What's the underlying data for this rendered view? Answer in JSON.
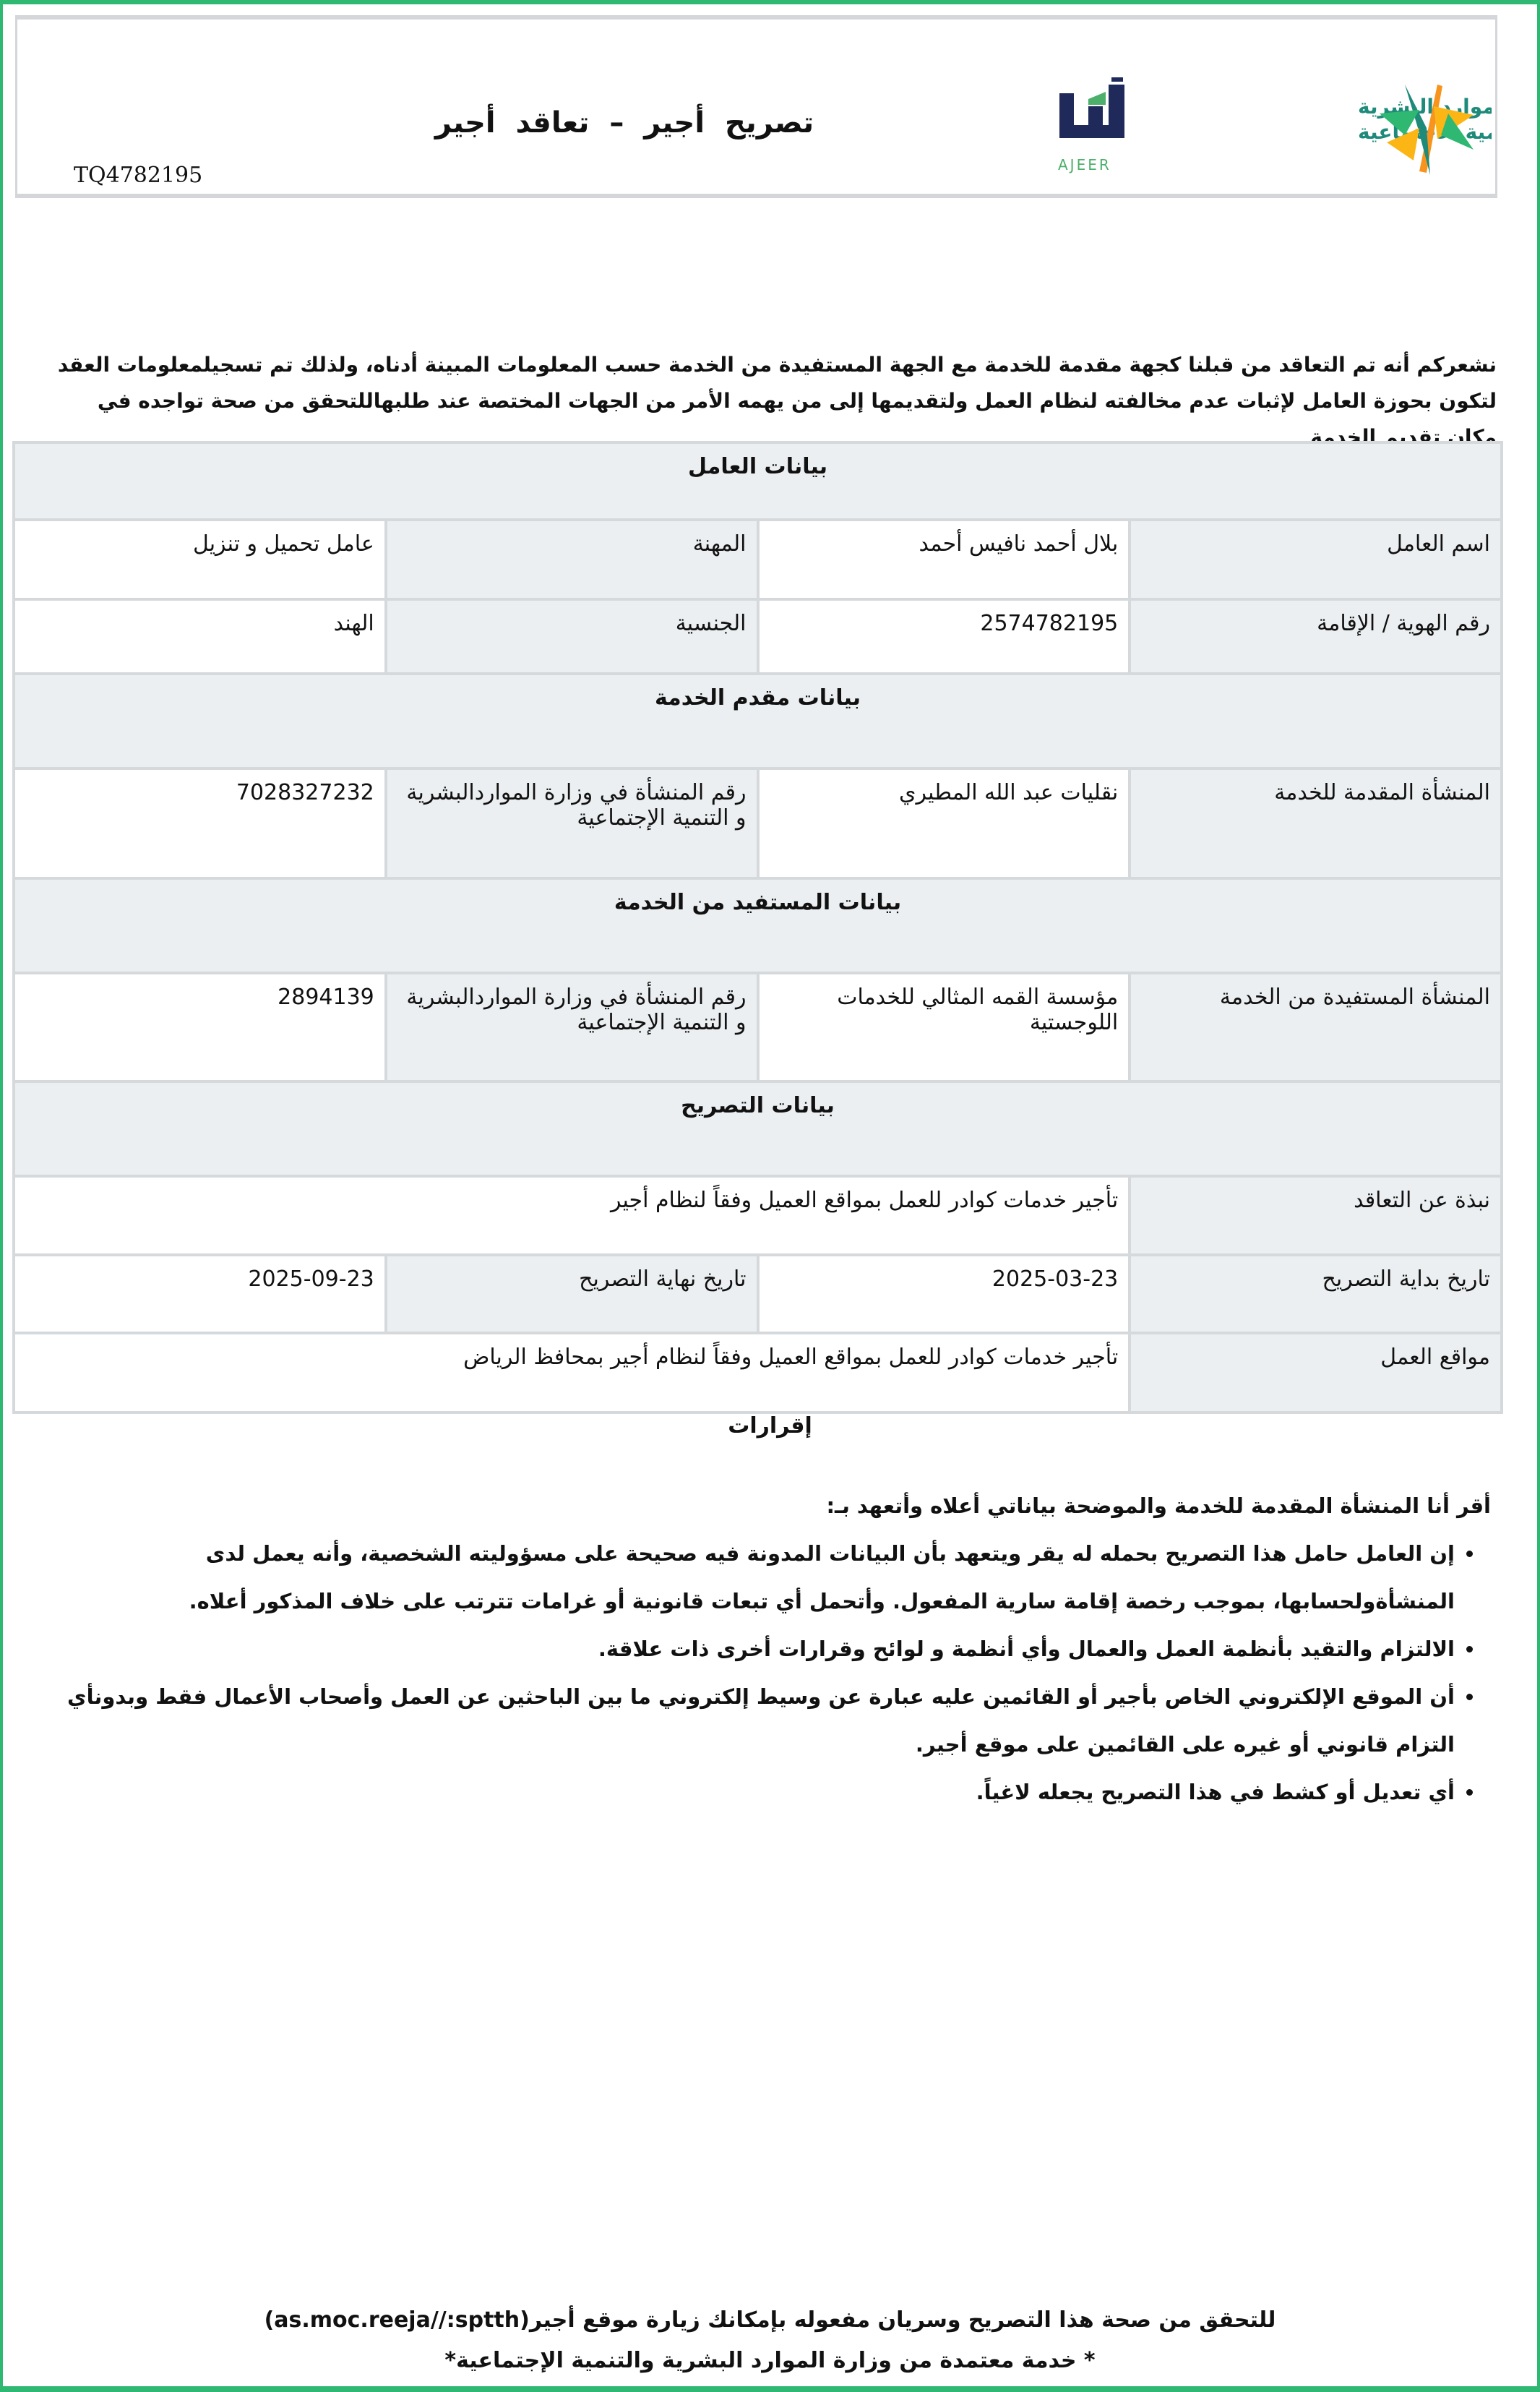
{
  "header": {
    "title": "تصريح أجير – تعاقد أجير",
    "reference": "TQ4782195",
    "ajeer_logo_text": "أجير",
    "ajeer_logo_latin": "AJEER",
    "ministry_logo_line1": "الموارد البشرية",
    "ministry_logo_line2": "والتنمية الاجتماعية",
    "colors": {
      "frame_green": "#2eb872",
      "ajeer_navy": "#1f2a5a",
      "ministry_teal": "#1e8a7a",
      "logo_orange": "#f7941d",
      "logo_yellow": "#fbb616",
      "cell_gray": "#eceff1"
    }
  },
  "intro": "نشعركم أنه تم التعاقد من قبلنا كجهة مقدمة للخدمة مع الجهة المستفيدة من الخدمة حسب المعلومات المبينة أدناه، ولذلك تم تسجيلمعلومات العقد لتكون بحوزة العامل لإثبات عدم مخالفته لنظام العمل ولتقديمها إلى من يهمه الأمر من الجهات المختصة عند طلبهاللتحقق من صحة تواجده في مكان تقديم الخدمة",
  "worker": {
    "section": "بيانات العامل",
    "name_label": "اسم العامل",
    "name": "بلال أحمد نافيس أحمد",
    "job_label": "المهنة",
    "job": "عامل تحميل و تنزيل",
    "id_label": "رقم الهوية / الإقامة",
    "id": "2574782195",
    "nationality_label": "الجنسية",
    "nationality": "الهند"
  },
  "provider": {
    "section": "بيانات مقدم الخدمة",
    "org_label": "المنشأة المقدمة للخدمة",
    "org": "نقليات عبد الله المطيري",
    "num_label": "رقم المنشأة في وزارة المواردالبشرية و التنمية الإجتماعية",
    "num": "7028327232"
  },
  "beneficiary": {
    "section": "بيانات المستفيد من الخدمة",
    "org_label": "المنشأة المستفيدة من الخدمة",
    "org": "مؤسسة القمه المثالي للخدمات اللوجستية",
    "num_label": "رقم المنشأة في وزارة المواردالبشرية و التنمية الإجتماعية",
    "num": "2894139"
  },
  "permit": {
    "section": "بيانات التصريح",
    "about_label": "نبذة عن التعاقد",
    "about": "تأجير خدمات كوادر للعمل بمواقع العميل وفقاً لنظام أجير",
    "start_label": "تاريخ بداية التصريح",
    "start": "2025-03-23",
    "end_label": "تاريخ نهاية التصريح",
    "end": "2025-09-23",
    "sites_label": "مواقع العمل",
    "sites": "تأجير خدمات كوادر للعمل بمواقع العميل وفقاً لنظام أجير بمحافظ الرياض"
  },
  "declarations": {
    "title": "إقرارات",
    "lead": "أقر أنا المنشأة المقدمة للخدمة والموضحة بياناتي أعلاه وأتعهد بـ:",
    "items": [
      "إن العامل حامل هذا التصريح بحمله له يقر ويتعهد بأن البيانات المدونة فيه صحيحة على مسؤوليته الشخصية، وأنه يعمل لدى المنشأةولحسابها، بموجب رخصة إقامة سارية المفعول. وأتحمل أي تبعات قانونية أو غرامات تترتب على خلاف المذكور أعلاه.",
      "الالتزام والتقيد بأنظمة العمل والعمال وأي أنظمة و لوائح وقرارات أخرى ذات علاقة.",
      "أن الموقع الإلكتروني الخاص بأجير أو القائمين عليه عبارة عن وسيط إلكتروني ما بين الباحثين عن العمل وأصحاب الأعمال فقط وبدونأي التزام قانوني أو غيره على القائمين على موقع أجير.",
      "أي تعديل أو كشط في هذا التصريح يجعله لاغياً."
    ]
  },
  "footer": {
    "verify": "للتحقق من صحة هذا التصريح وسريان مفعوله بإمكانك زيارة موقع أجير",
    "url": "(as.moc.reeja//:sptth)",
    "certified": "* خدمة معتمدة من وزارة الموارد البشرية والتنمية الإجتماعية*"
  }
}
